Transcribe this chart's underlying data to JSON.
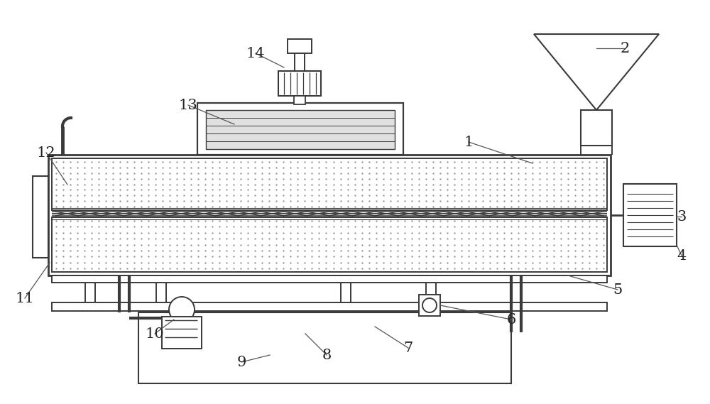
{
  "bg_color": "#ffffff",
  "lc": "#3a3a3a",
  "label_color": "#222222",
  "figsize": [
    10.0,
    5.69
  ],
  "dpi": 100
}
